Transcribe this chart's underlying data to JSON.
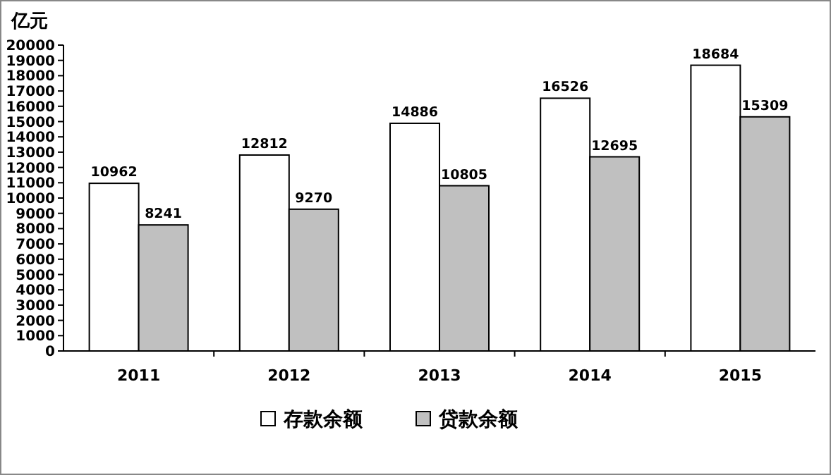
{
  "chart_data": {
    "type": "bar",
    "ylabel": "亿元",
    "categories": [
      "2011",
      "2012",
      "2013",
      "2014",
      "2015"
    ],
    "series": [
      {
        "name": "存款余额",
        "color": "#ffffff",
        "values": [
          10962,
          12812,
          14886,
          16526,
          18684
        ]
      },
      {
        "name": "贷款余额",
        "color": "#c0c0c0",
        "values": [
          8241,
          9270,
          10805,
          12695,
          15309
        ]
      }
    ],
    "ylim": [
      0,
      20000
    ],
    "yticks": [
      0,
      1000,
      2000,
      3000,
      4000,
      5000,
      6000,
      7000,
      8000,
      9000,
      10000,
      11000,
      12000,
      13000,
      14000,
      15000,
      16000,
      17000,
      18000,
      19000,
      20000
    ],
    "data_labels": true,
    "grid": false,
    "legend": "bottom"
  }
}
